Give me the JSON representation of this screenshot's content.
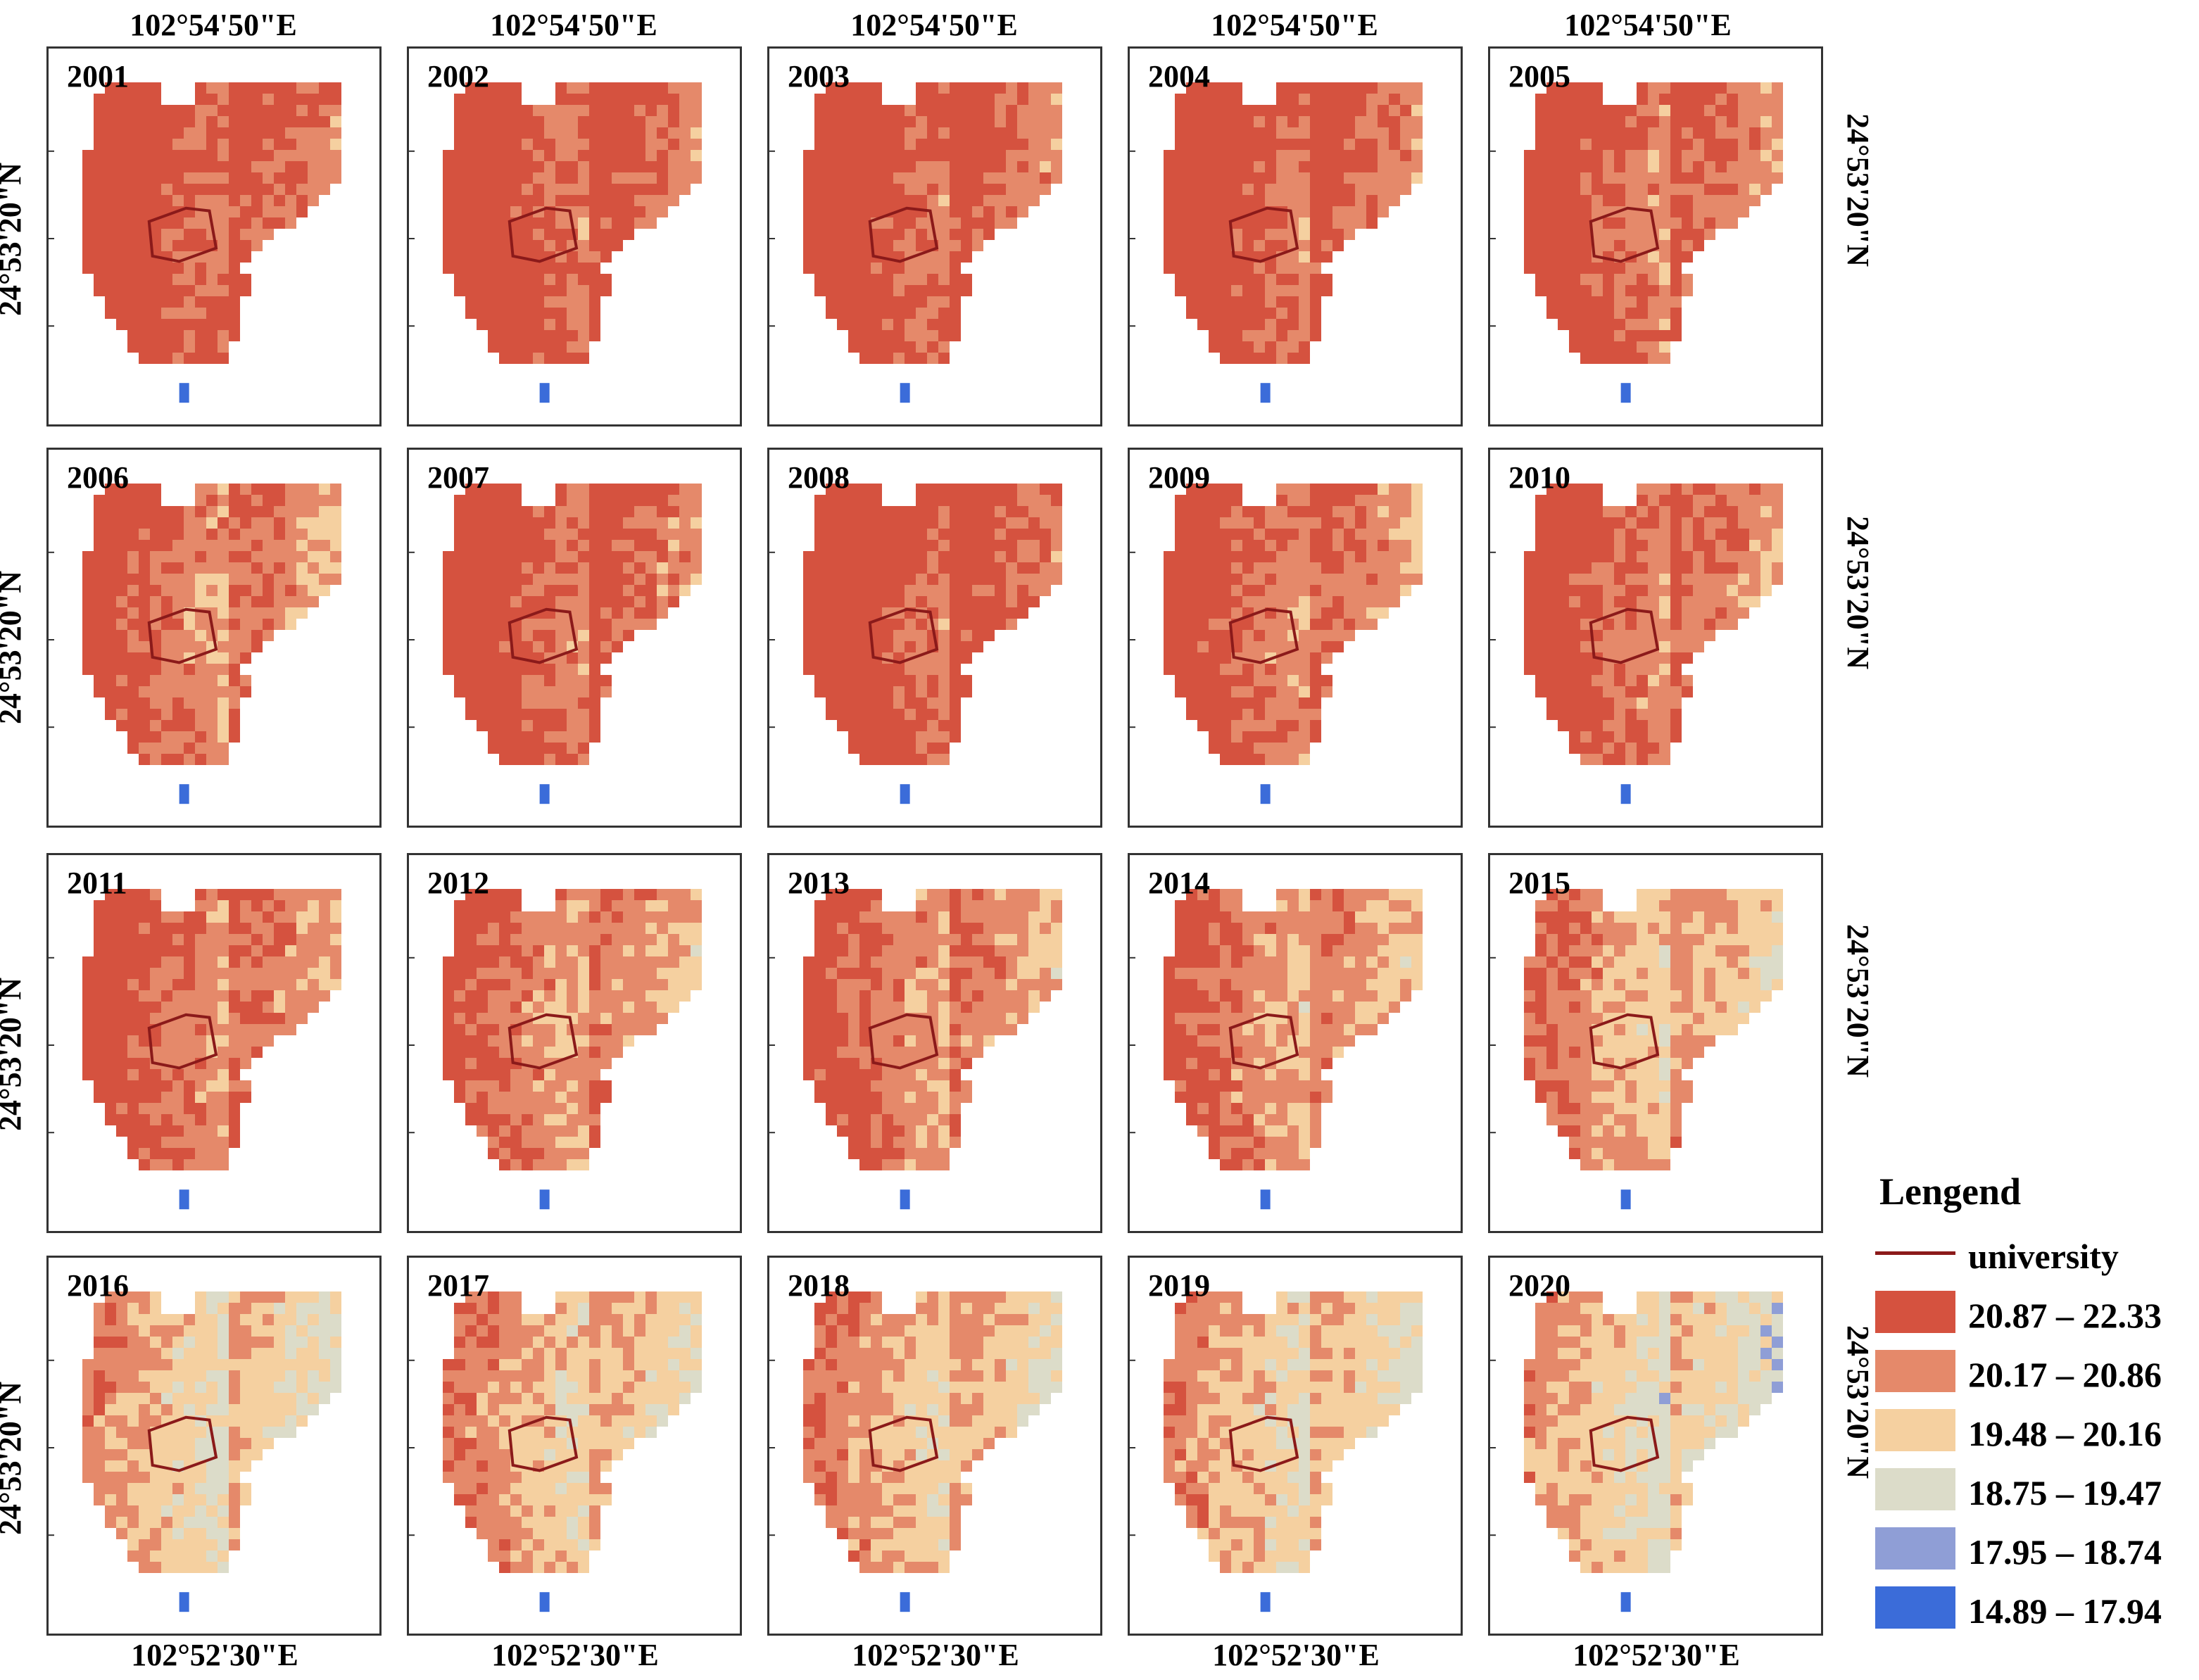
{
  "map": {
    "top_longitude_label": "102°54'50\"E",
    "bottom_longitude_label": "102°52'30\"E",
    "latitude_label": "24°53'20\"N",
    "panels": [
      {
        "year": "2001",
        "profile": 0.55
      },
      {
        "year": "2002",
        "profile": 0.55
      },
      {
        "year": "2003",
        "profile": 0.55
      },
      {
        "year": "2004",
        "profile": 0.62
      },
      {
        "year": "2005",
        "profile": 0.85
      },
      {
        "year": "2006",
        "profile": 1.08
      },
      {
        "year": "2007",
        "profile": 0.72
      },
      {
        "year": "2008",
        "profile": 0.45
      },
      {
        "year": "2009",
        "profile": 0.95
      },
      {
        "year": "2010",
        "profile": 0.95
      },
      {
        "year": "2011",
        "profile": 1.05
      },
      {
        "year": "2012",
        "profile": 1.35
      },
      {
        "year": "2013",
        "profile": 1.25
      },
      {
        "year": "2014",
        "profile": 1.45
      },
      {
        "year": "2015",
        "profile": 1.75
      },
      {
        "year": "2016",
        "profile": 2.25
      },
      {
        "year": "2017",
        "profile": 1.95
      },
      {
        "year": "2018",
        "profile": 1.9
      },
      {
        "year": "2019",
        "profile": 2.15
      },
      {
        "year": "2020",
        "profile": 2.45
      }
    ],
    "boundary_color": "#8b1a1a"
  },
  "legend": {
    "title": "Lengend",
    "boundary_label": "university",
    "classes": [
      {
        "label": "20.87 – 22.33",
        "color": "#d5523f"
      },
      {
        "label": "20.17 – 20.86",
        "color": "#e5896a"
      },
      {
        "label": "19.48 – 20.16",
        "color": "#f5d0a0"
      },
      {
        "label": "18.75 – 19.47",
        "color": "#dcdcc9"
      },
      {
        "label": "17.95 – 18.74",
        "color": "#8f9ed6"
      },
      {
        "label": "14.89 – 17.94",
        "color": "#3b6cd9"
      }
    ]
  }
}
